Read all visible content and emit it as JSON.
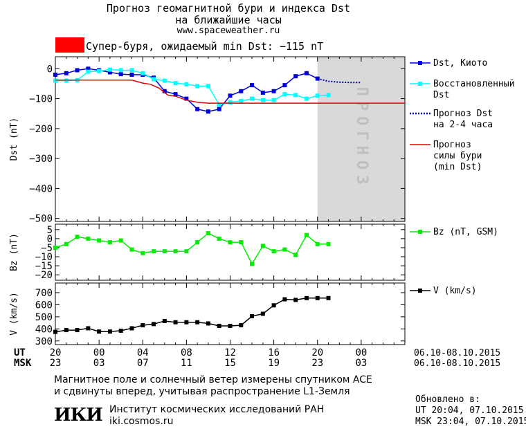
{
  "header": {
    "title_line1": "Прогноз геомагнитной бури и индекса Dst",
    "title_line2": "на ближайшие часы",
    "site": "www.spaceweather.ru",
    "storm_label": "Супер-буря, ожидаемый min Dst: −115 nT",
    "storm_color": "#ff0000"
  },
  "colors": {
    "dst": "#0000dd",
    "restored": "#00ffff",
    "forecast_dst": "#0000aa",
    "storm_line": "#dd0000",
    "bz": "#00ee00",
    "v": "#000000",
    "forecast_band": "#d9d9d9",
    "forecast_text": "#bfbfbf"
  },
  "legend": {
    "dst_kyoto": "Dst, Киото",
    "restored_1": "Восстановленный",
    "restored_2": "Dst",
    "forecast_1": "Прогноз Dst",
    "forecast_2": "на 2-4 часа",
    "storm_1": "Прогноз",
    "storm_2": "силы бури",
    "storm_3": "(min Dst)",
    "bz": "Bz (nT, GSM)",
    "v": "V (km/s)"
  },
  "forecast_band_label": "ПРОГНОЗ",
  "x_axis": {
    "ut_label": "UT",
    "msk_label": "MSK",
    "ut_ticks": [
      "20",
      "00",
      "04",
      "08",
      "12",
      "16",
      "20",
      "00"
    ],
    "msk_ticks": [
      "23",
      "03",
      "07",
      "11",
      "15",
      "19",
      "23",
      "03"
    ],
    "date_range": "06.10-08.10.2015"
  },
  "footer": {
    "note_line1": "Магнитное поле и солнечный ветер измерены спутником ACE",
    "note_line2": "и сдвинуты вперед, учитывая распространение L1-Земля",
    "updated_label": "Обновлено в:",
    "updated_ut": "UT  20:04, 07.10.2015",
    "updated_msk": "MSK 23:04, 07.10.2015",
    "logo": "ИКИ",
    "institute": "Институт космических исследований РАН",
    "institute_site": "iki.cosmos.ru"
  },
  "chart_data": [
    {
      "type": "line",
      "ylabel": "Dst (nT)",
      "ylim": [
        -510,
        40
      ],
      "yticks": [
        0,
        -100,
        -200,
        -300,
        -400,
        -500
      ],
      "x_hours": [
        0,
        32
      ],
      "forecast_region": [
        24,
        32
      ],
      "series": [
        {
          "name": "Dst, Киото",
          "color_key": "dst",
          "marker": "square",
          "x": [
            0,
            1,
            2,
            3,
            4,
            5,
            6,
            7,
            8,
            9,
            10,
            11,
            12,
            13,
            14,
            15,
            16,
            17,
            18,
            19,
            20,
            21,
            22,
            23,
            24
          ],
          "y": [
            -20,
            -15,
            -5,
            0,
            -5,
            -12,
            -18,
            -20,
            -20,
            -30,
            -75,
            -85,
            -100,
            -135,
            -143,
            -135,
            -90,
            -75,
            -55,
            -80,
            -75,
            -55,
            -25,
            -15,
            -33
          ]
        },
        {
          "name": "Восстановленный Dst",
          "color_key": "restored",
          "marker": "square",
          "x": [
            0,
            1,
            2,
            3,
            4,
            5,
            6,
            7,
            8,
            9,
            10,
            11,
            12,
            13,
            14,
            15,
            16,
            17,
            18,
            19,
            20,
            21,
            22,
            23,
            24,
            25
          ],
          "y": [
            -40,
            -40,
            -38,
            -10,
            -8,
            -3,
            -5,
            -5,
            -15,
            -35,
            -40,
            -48,
            -52,
            -58,
            -58,
            -120,
            -112,
            -108,
            -100,
            -105,
            -105,
            -85,
            -88,
            -100,
            -90,
            -88
          ]
        },
        {
          "name": "Прогноз Dst",
          "color_key": "forecast_dst",
          "style": "dotted",
          "x": [
            24,
            25,
            26,
            27,
            28
          ],
          "y": [
            -33,
            -42,
            -45,
            -46,
            -46
          ]
        },
        {
          "name": "Прогноз силы бури",
          "color_key": "storm_line",
          "step": true,
          "x": [
            0,
            7,
            8,
            8.7,
            9.5,
            10.3,
            11,
            12,
            13,
            14,
            32
          ],
          "y": [
            -38,
            -38,
            -48,
            -52,
            -65,
            -88,
            -92,
            -105,
            -112,
            -115,
            -115
          ]
        }
      ]
    },
    {
      "type": "line",
      "ylabel": "Bz (nT)",
      "ylim": [
        -23,
        8
      ],
      "yticks": [
        5,
        0,
        -5,
        -10,
        -15,
        -20
      ],
      "series": [
        {
          "name": "Bz (nT, GSM)",
          "color_key": "bz",
          "marker": "square",
          "x": [
            0,
            1,
            2,
            3,
            4,
            5,
            6,
            7,
            8,
            9,
            10,
            11,
            12,
            13,
            14,
            15,
            16,
            17,
            18,
            19,
            20,
            21,
            22,
            23,
            24,
            25
          ],
          "y": [
            -5,
            -3,
            1,
            0,
            -1,
            -2,
            -1,
            -6,
            -8,
            -7,
            -7,
            -7,
            -7,
            -2,
            3,
            0,
            -2,
            -2,
            -14,
            -4,
            -7,
            -6,
            -9,
            2,
            -3,
            -3
          ]
        }
      ]
    },
    {
      "type": "line",
      "ylabel": "V (km/s)",
      "ylim": [
        270,
        780
      ],
      "yticks": [
        700,
        600,
        500,
        400,
        300
      ],
      "series": [
        {
          "name": "V (km/s)",
          "color_key": "v",
          "marker": "square",
          "x": [
            0,
            1,
            2,
            3,
            4,
            5,
            6,
            7,
            8,
            9,
            10,
            11,
            12,
            13,
            14,
            15,
            16,
            17,
            18,
            19,
            20,
            21,
            22,
            23,
            24,
            25
          ],
          "y": [
            375,
            390,
            390,
            405,
            378,
            378,
            385,
            405,
            430,
            440,
            465,
            455,
            455,
            455,
            445,
            425,
            425,
            430,
            505,
            525,
            595,
            645,
            640,
            655,
            655,
            655
          ]
        }
      ]
    }
  ]
}
